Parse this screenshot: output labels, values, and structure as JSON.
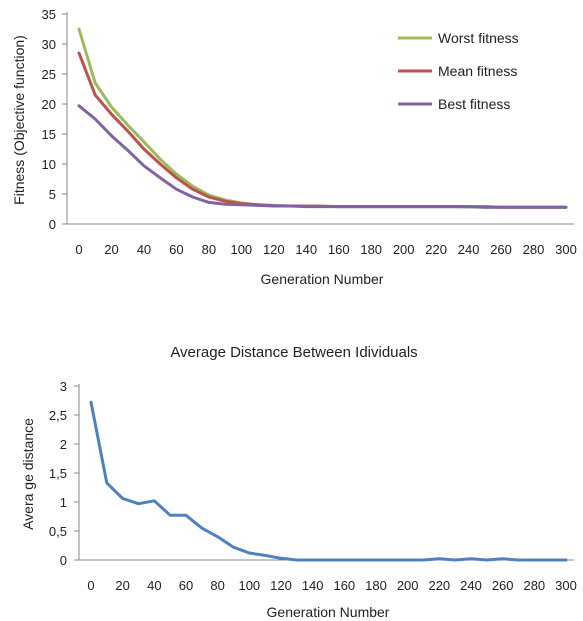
{
  "chart_data": [
    {
      "type": "line",
      "title": "",
      "xlabel": "Generation Number",
      "ylabel": "Fitness (Objective function)",
      "xlim": [
        0,
        300
      ],
      "ylim": [
        0,
        35
      ],
      "x_ticks": [
        "0",
        "20",
        "40",
        "60",
        "80",
        "100",
        "120",
        "140",
        "160",
        "180",
        "200",
        "220",
        "240",
        "260",
        "280",
        "300"
      ],
      "y_ticks": [
        "0",
        "5",
        "10",
        "15",
        "20",
        "25",
        "30",
        "35"
      ],
      "grid": false,
      "legend_position": "top-right",
      "x": [
        0,
        10,
        20,
        30,
        40,
        50,
        60,
        70,
        80,
        90,
        100,
        110,
        120,
        130,
        140,
        150,
        160,
        170,
        180,
        190,
        200,
        210,
        220,
        230,
        240,
        250,
        260,
        270,
        280,
        290,
        300
      ],
      "series": [
        {
          "name": "Worst fitness",
          "color": "#9BBB59",
          "values": [
            32.5,
            23.5,
            19.5,
            16.5,
            13.7,
            10.8,
            8.3,
            6.3,
            4.8,
            4.0,
            3.5,
            3.2,
            3.1,
            3.0,
            3.0,
            2.95,
            2.9,
            2.9,
            2.9,
            2.9,
            2.9,
            2.9,
            2.9,
            2.9,
            2.85,
            2.8,
            2.8,
            2.8,
            2.8,
            2.8,
            2.8
          ]
        },
        {
          "name": "Mean fitness",
          "color": "#C0504D",
          "values": [
            28.5,
            21.5,
            18.3,
            15.5,
            12.5,
            10.0,
            7.7,
            5.8,
            4.5,
            3.8,
            3.4,
            3.2,
            3.05,
            3.0,
            3.0,
            2.95,
            2.9,
            2.9,
            2.9,
            2.9,
            2.9,
            2.9,
            2.9,
            2.9,
            2.9,
            2.9,
            2.8,
            2.8,
            2.8,
            2.8,
            2.8
          ]
        },
        {
          "name": "Best fitness",
          "color": "#8064A2",
          "values": [
            19.7,
            17.5,
            14.7,
            12.3,
            9.7,
            7.7,
            5.8,
            4.5,
            3.6,
            3.3,
            3.2,
            3.1,
            3.0,
            3.0,
            2.9,
            2.9,
            2.9,
            2.9,
            2.9,
            2.9,
            2.9,
            2.9,
            2.9,
            2.9,
            2.9,
            2.8,
            2.8,
            2.8,
            2.8,
            2.8,
            2.8
          ]
        }
      ]
    },
    {
      "type": "line",
      "title": "Average Distance Between Idividuals",
      "xlabel": "Generation Number",
      "ylabel": "Avera ge distance",
      "xlim": [
        0,
        300
      ],
      "ylim": [
        0,
        3
      ],
      "x_ticks": [
        "0",
        "20",
        "40",
        "60",
        "80",
        "100",
        "120",
        "140",
        "160",
        "180",
        "200",
        "220",
        "240",
        "260",
        "280",
        "300"
      ],
      "y_ticks": [
        "0",
        "0,5",
        "1",
        "1,5",
        "2",
        "2,5",
        "3"
      ],
      "grid": false,
      "x": [
        0,
        10,
        20,
        30,
        40,
        50,
        60,
        70,
        80,
        90,
        100,
        110,
        120,
        130,
        140,
        150,
        160,
        170,
        180,
        190,
        200,
        210,
        220,
        230,
        240,
        250,
        260,
        270,
        280,
        290,
        300
      ],
      "series": [
        {
          "color": "#4F81BD",
          "values": [
            2.72,
            1.33,
            1.06,
            0.97,
            1.02,
            0.77,
            0.77,
            0.55,
            0.4,
            0.22,
            0.12,
            0.08,
            0.03,
            0.0,
            0.0,
            0.0,
            0.0,
            0.0,
            0.0,
            0.0,
            0.0,
            0.0,
            0.02,
            0.0,
            0.02,
            0.0,
            0.02,
            0.0,
            0.0,
            0.0,
            0.0
          ]
        }
      ]
    }
  ]
}
